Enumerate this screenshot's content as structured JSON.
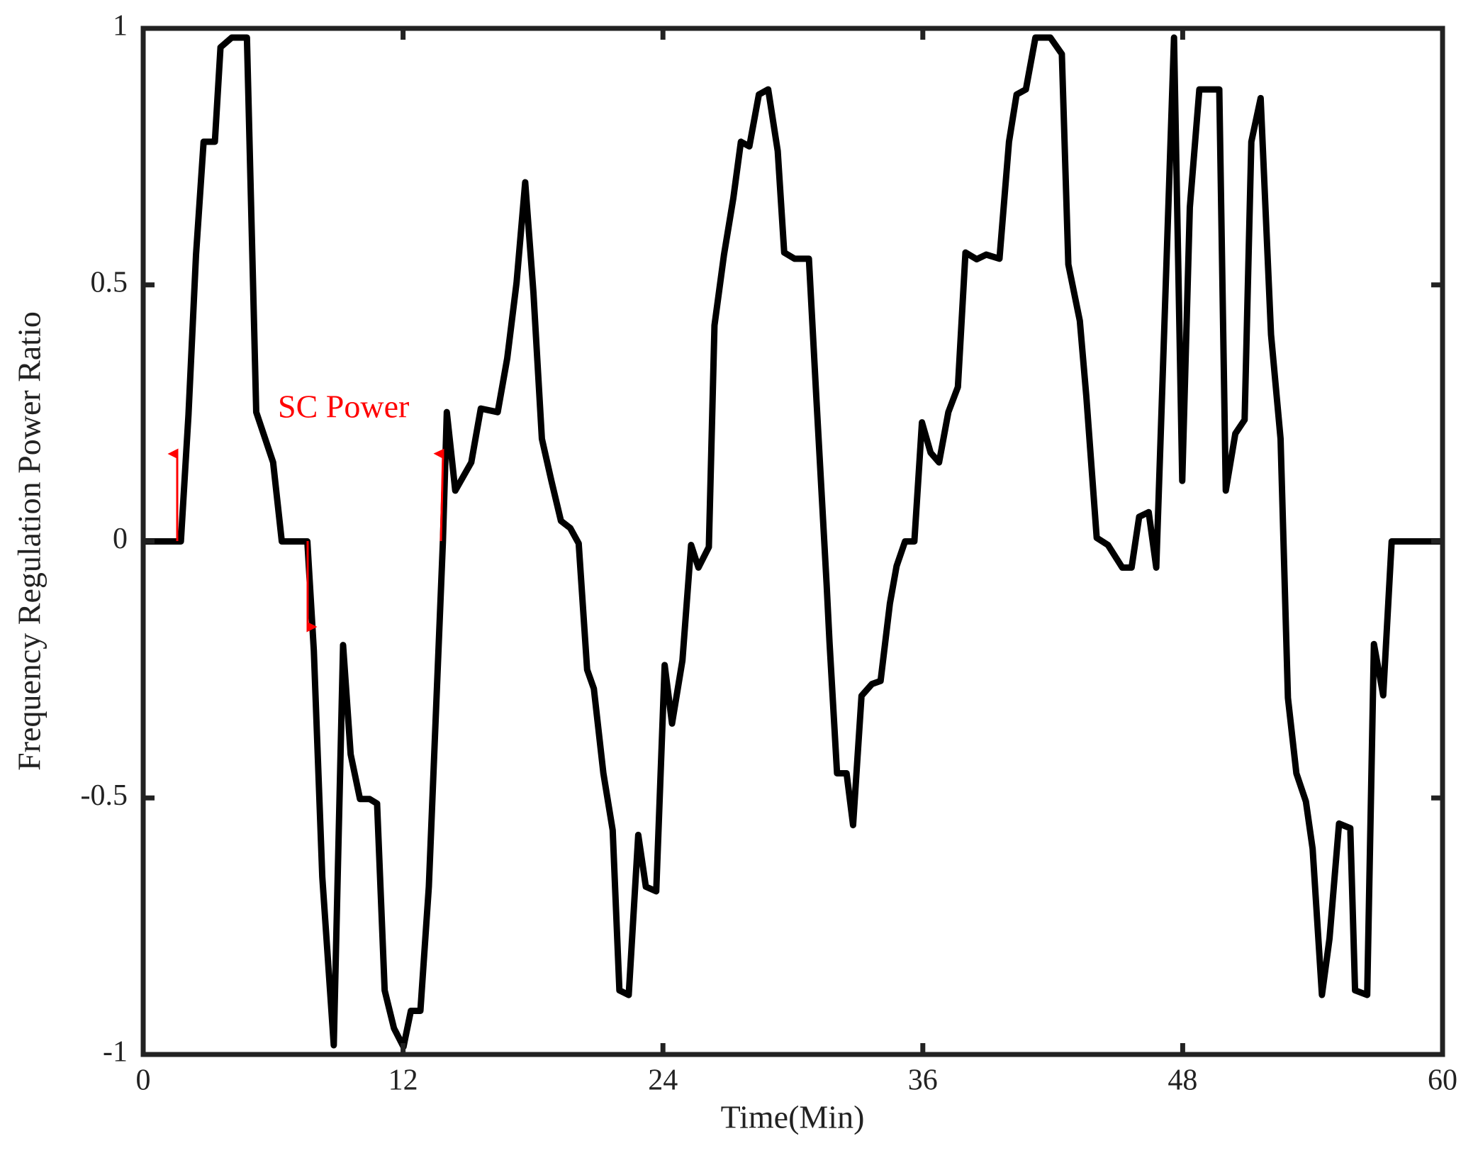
{
  "chart_data": {
    "type": "line",
    "xlabel": "Time(Min)",
    "ylabel": "Frequency Regulation Power Ratio",
    "annotation": "SC Power",
    "xlim": [
      0,
      60
    ],
    "xticks": [
      0,
      12,
      24,
      36,
      48,
      60
    ],
    "ylim": [
      -1,
      1
    ],
    "yticks": [
      -1,
      -0.5,
      0,
      0.5,
      1
    ],
    "series": [
      {
        "color": "#000000",
        "x": [
          0,
          1.74,
          2.09,
          2.44,
          2.79,
          3.31,
          3.57,
          4.09,
          4.79,
          5.22,
          6.0,
          6.4,
          7.58,
          7.88,
          8.27,
          8.8,
          9.23,
          9.58,
          10.01,
          10.45,
          10.8,
          11.15,
          11.58,
          12.02,
          12.36,
          12.8,
          13.19,
          13.84,
          14.02,
          14.41,
          15.15,
          15.59,
          16.37,
          16.81,
          17.24,
          17.64,
          18.02,
          18.41,
          18.85,
          19.29,
          19.72,
          20.11,
          20.5,
          20.81,
          21.25,
          21.68,
          21.99,
          22.42,
          22.86,
          23.21,
          23.69,
          24.08,
          24.42,
          24.9,
          25.3,
          25.64,
          26.12,
          26.38,
          26.82,
          27.25,
          27.6,
          27.99,
          28.43,
          28.86,
          29.3,
          29.6,
          30.08,
          30.74,
          31.08,
          31.56,
          31.69,
          32.04,
          32.48,
          32.78,
          33.17,
          33.65,
          34.05,
          34.48,
          34.79,
          35.18,
          35.61,
          35.96,
          36.36,
          36.75,
          37.18,
          37.62,
          37.97,
          38.49,
          38.93,
          39.54,
          39.98,
          40.33,
          40.76,
          41.2,
          41.89,
          42.42,
          42.72,
          43.25,
          43.55,
          44.03,
          44.55,
          45.21,
          45.64,
          45.99,
          46.43,
          46.78,
          47.6,
          47.98,
          48.33,
          48.77,
          49.69,
          49.99,
          50.43,
          50.86,
          51.17,
          51.6,
          52.08,
          52.52,
          52.86,
          53.25,
          53.69,
          54.0,
          54.43,
          54.78,
          55.22,
          55.74,
          55.96,
          56.52,
          56.83,
          57.26,
          57.65,
          60
        ],
        "values": [
          0,
          0,
          0.246,
          0.559,
          0.779,
          0.779,
          0.963,
          0.982,
          0.982,
          0.252,
          0.154,
          0,
          0,
          -0.213,
          -0.654,
          -0.982,
          -0.202,
          -0.415,
          -0.502,
          -0.502,
          -0.511,
          -0.875,
          -0.949,
          -0.985,
          -0.915,
          -0.915,
          -0.673,
          0,
          0.252,
          0.099,
          0.154,
          0.259,
          0.252,
          0.357,
          0.504,
          0.7,
          0.485,
          0.2,
          0.118,
          0.04,
          0.026,
          -0.004,
          -0.25,
          -0.287,
          -0.452,
          -0.563,
          -0.875,
          -0.884,
          -0.572,
          -0.673,
          -0.682,
          -0.241,
          -0.355,
          -0.232,
          -0.007,
          -0.051,
          -0.011,
          0.421,
          0.559,
          0.669,
          0.779,
          0.77,
          0.871,
          0.881,
          0.761,
          0.563,
          0.551,
          0.551,
          0.283,
          -0.085,
          -0.195,
          -0.452,
          -0.452,
          -0.553,
          -0.301,
          -0.278,
          -0.272,
          -0.121,
          -0.048,
          0,
          0,
          0.232,
          0.173,
          0.154,
          0.252,
          0.301,
          0.563,
          0.55,
          0.559,
          0.551,
          0.779,
          0.871,
          0.881,
          0.982,
          0.982,
          0.95,
          0.54,
          0.43,
          0.283,
          0.007,
          -0.007,
          -0.051,
          -0.051,
          0.048,
          0.057,
          -0.051,
          0.982,
          0.118,
          0.651,
          0.881,
          0.881,
          0.099,
          0.21,
          0.237,
          0.779,
          0.864,
          0.403,
          0.2,
          -0.305,
          -0.452,
          -0.507,
          -0.599,
          -0.884,
          -0.774,
          -0.55,
          -0.559,
          -0.875,
          -0.884,
          -0.2,
          -0.3,
          0,
          0
        ]
      }
    ]
  }
}
